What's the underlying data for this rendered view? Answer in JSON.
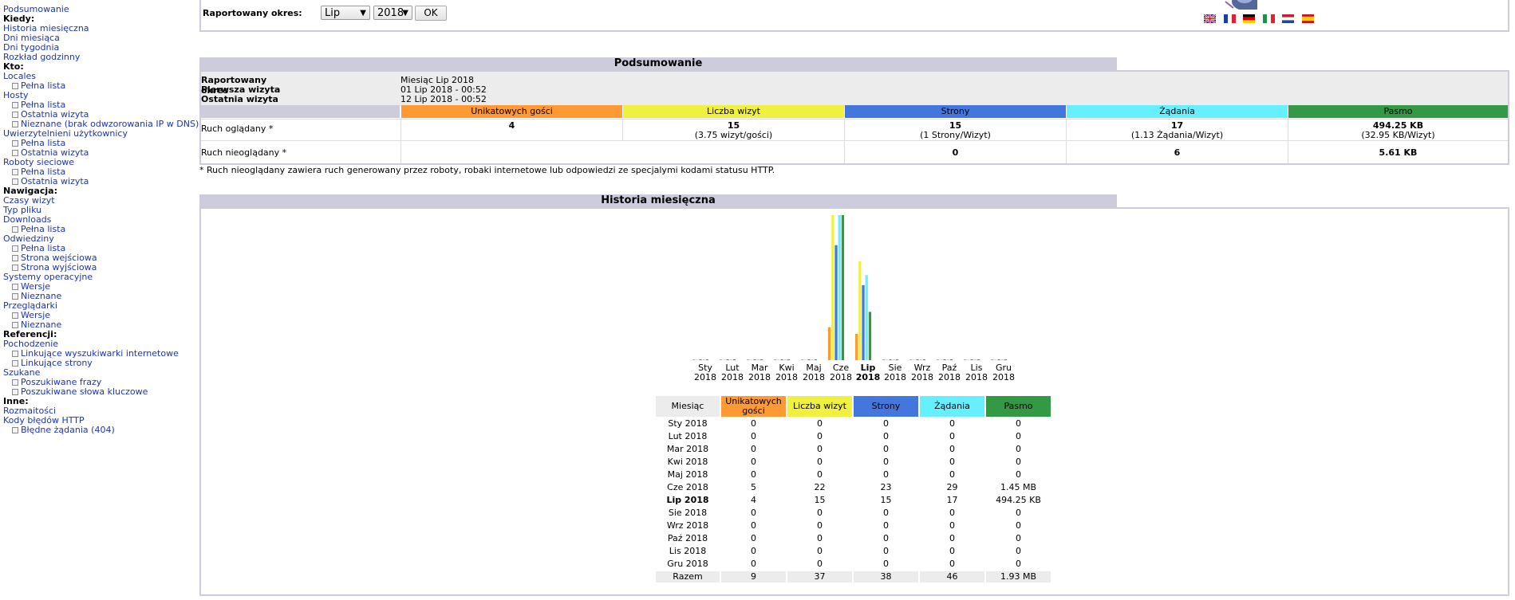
{
  "menu": {
    "summary": "Podsumowanie",
    "when": {
      "title": "Kiedy:",
      "items": [
        "Historia miesięczna",
        "Dni miesiąca",
        "Dni tygodnia",
        "Rozkład godzinny"
      ]
    },
    "who": {
      "title": "Kto:",
      "locales": "Locales",
      "locales_full": "Pełna lista",
      "hosts": "Hosty",
      "hosts_full": "Pełna lista",
      "hosts_last": "Ostatnia wizyta",
      "hosts_unknown": "Nieznane (brak odwzorowania IP w DNS)",
      "auth": "Uwierzytelnieni użytkownicy",
      "auth_full": "Pełna lista",
      "auth_last": "Ostatnia wizyta",
      "robots": "Roboty sieciowe",
      "robots_full": "Pełna lista",
      "robots_last": "Ostatnia wizyta"
    },
    "nav": {
      "title": "Nawigacja:",
      "visit_times": "Czasy wizyt",
      "filetype": "Typ pliku",
      "downloads": "Downloads",
      "downloads_full": "Pełna lista",
      "pages": "Odwiedziny",
      "pages_full": "Pełna lista",
      "pages_entry": "Strona wejściowa",
      "pages_exit": "Strona wyjściowa",
      "os": "Systemy operacyjne",
      "os_versions": "Wersje",
      "os_unknown": "Nieznane",
      "browsers": "Przeglądarki",
      "browsers_versions": "Wersje",
      "browsers_unknown": "Nieznane"
    },
    "ref": {
      "title": "Referencji:",
      "origin": "Pochodzenie",
      "search_engines": "Linkujące wyszukiwarki internetowe",
      "sites": "Linkujące strony",
      "searched": "Szukane",
      "phrases": "Poszukiwane frazy",
      "keywords": "Poszukiwane słowa kluczowe"
    },
    "other": {
      "title": "Inne:",
      "misc": "Rozmaitości",
      "errors": "Kody błędów HTTP",
      "errors_404": "Błędne żądania (404)"
    }
  },
  "top": {
    "period_label": "Raportowany okres:",
    "month": "Lip",
    "year": "2018",
    "ok": "OK"
  },
  "colors": {
    "visitors": "#ff9933",
    "visits": "#f0f040",
    "pages": "#4477dd",
    "hits": "#66f0ff",
    "bandwidth": "#339944",
    "section": "#ccccdd"
  },
  "summary": {
    "title": "Podsumowanie",
    "period_k": "Raportowany okres",
    "period_v": "Miesiąc Lip 2018",
    "first_k": "Pierwsza wizyta",
    "first_v": "01 Lip 2018 - 00:52",
    "last_k": "Ostatnia wizyta",
    "last_v": "12 Lip 2018 - 00:52",
    "headers": [
      "Unikatowych gości",
      "Liczba wizyt",
      "Strony",
      "Żądania",
      "Pasmo"
    ],
    "viewed_label": "Ruch oglądany *",
    "viewed": {
      "visitors": "4",
      "visits": "15",
      "visits_sub": "(3.75 wizyt/gości)",
      "pages": "15",
      "pages_sub": "(1 Strony/Wizyt)",
      "hits": "17",
      "hits_sub": "(1.13 Żądania/Wizyt)",
      "bandwidth": "494.25 KB",
      "bandwidth_sub": "(32.95 KB/Wizyt)"
    },
    "notviewed_label": "Ruch nieoglądany *",
    "notviewed": {
      "pages": "0",
      "hits": "6",
      "bandwidth": "5.61 KB"
    },
    "note": "* Ruch nieoglądany zawiera ruch generowany przez roboty, robaki internetowe lub odpowiedzi ze specjalymi kodami statusu HTTP."
  },
  "history": {
    "title": "Historia miesięczna",
    "headers": [
      "Miesiąc",
      "Unikatowych gości",
      "Liczba wizyt",
      "Strony",
      "Żądania",
      "Pasmo"
    ],
    "rows": [
      [
        "Sty 2018",
        "0",
        "0",
        "0",
        "0",
        "0"
      ],
      [
        "Lut 2018",
        "0",
        "0",
        "0",
        "0",
        "0"
      ],
      [
        "Mar 2018",
        "0",
        "0",
        "0",
        "0",
        "0"
      ],
      [
        "Kwi 2018",
        "0",
        "0",
        "0",
        "0",
        "0"
      ],
      [
        "Maj 2018",
        "0",
        "0",
        "0",
        "0",
        "0"
      ],
      [
        "Cze 2018",
        "5",
        "22",
        "23",
        "29",
        "1.45 MB"
      ],
      [
        "Lip 2018",
        "4",
        "15",
        "15",
        "17",
        "494.25 KB"
      ],
      [
        "Sie 2018",
        "0",
        "0",
        "0",
        "0",
        "0"
      ],
      [
        "Wrz 2018",
        "0",
        "0",
        "0",
        "0",
        "0"
      ],
      [
        "Paź 2018",
        "0",
        "0",
        "0",
        "0",
        "0"
      ],
      [
        "Lis 2018",
        "0",
        "0",
        "0",
        "0",
        "0"
      ],
      [
        "Gru 2018",
        "0",
        "0",
        "0",
        "0",
        "0"
      ]
    ],
    "total": [
      "Razem",
      "9",
      "37",
      "38",
      "46",
      "1.93 MB"
    ],
    "current_index": 6
  },
  "chart_data": {
    "type": "bar",
    "categories": [
      "Sty",
      "Lut",
      "Mar",
      "Kwi",
      "Maj",
      "Cze",
      "Lip",
      "Sie",
      "Wrz",
      "Paź",
      "Lis",
      "Gru"
    ],
    "category_year": "2018",
    "series": [
      {
        "values": [
          0,
          0,
          0,
          0,
          0,
          5,
          4,
          0,
          0,
          0,
          0,
          0
        ]
      },
      {
        "values": [
          0,
          0,
          0,
          0,
          0,
          22,
          15,
          0,
          0,
          0,
          0,
          0
        ]
      },
      {
        "values": [
          0,
          0,
          0,
          0,
          0,
          23,
          15,
          0,
          0,
          0,
          0,
          0
        ]
      },
      {
        "values": [
          0,
          0,
          0,
          0,
          0,
          29,
          17,
          0,
          0,
          0,
          0,
          0
        ]
      },
      {
        "values": [
          0,
          0,
          0,
          0,
          0,
          1.45,
          0.483,
          0,
          0,
          0,
          0,
          0
        ],
        "unit": "MB"
      }
    ],
    "highlight": "Lip"
  }
}
